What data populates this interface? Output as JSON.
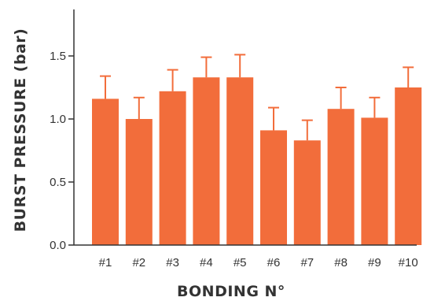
{
  "chart_data": {
    "type": "bar",
    "title": "",
    "xlabel": "BONDING N°",
    "ylabel": "BURST PRESSURE  (bar)",
    "ylim": [
      0,
      1.8
    ],
    "yticks": [
      "0.0",
      "0.5",
      "1.0",
      "1.5"
    ],
    "categories": [
      "#1",
      "#2",
      "#3",
      "#4",
      "#5",
      "#6",
      "#7",
      "#8",
      "#9",
      "#10"
    ],
    "values": [
      1.16,
      1.0,
      1.22,
      1.33,
      1.33,
      0.91,
      0.83,
      1.08,
      1.01,
      1.25
    ],
    "errors": [
      0.18,
      0.17,
      0.17,
      0.16,
      0.18,
      0.18,
      0.16,
      0.17,
      0.16,
      0.16
    ],
    "grid": false,
    "colors": {
      "bar": "#F26D3B",
      "error": "#F26D3B",
      "axis": "#333333"
    }
  }
}
